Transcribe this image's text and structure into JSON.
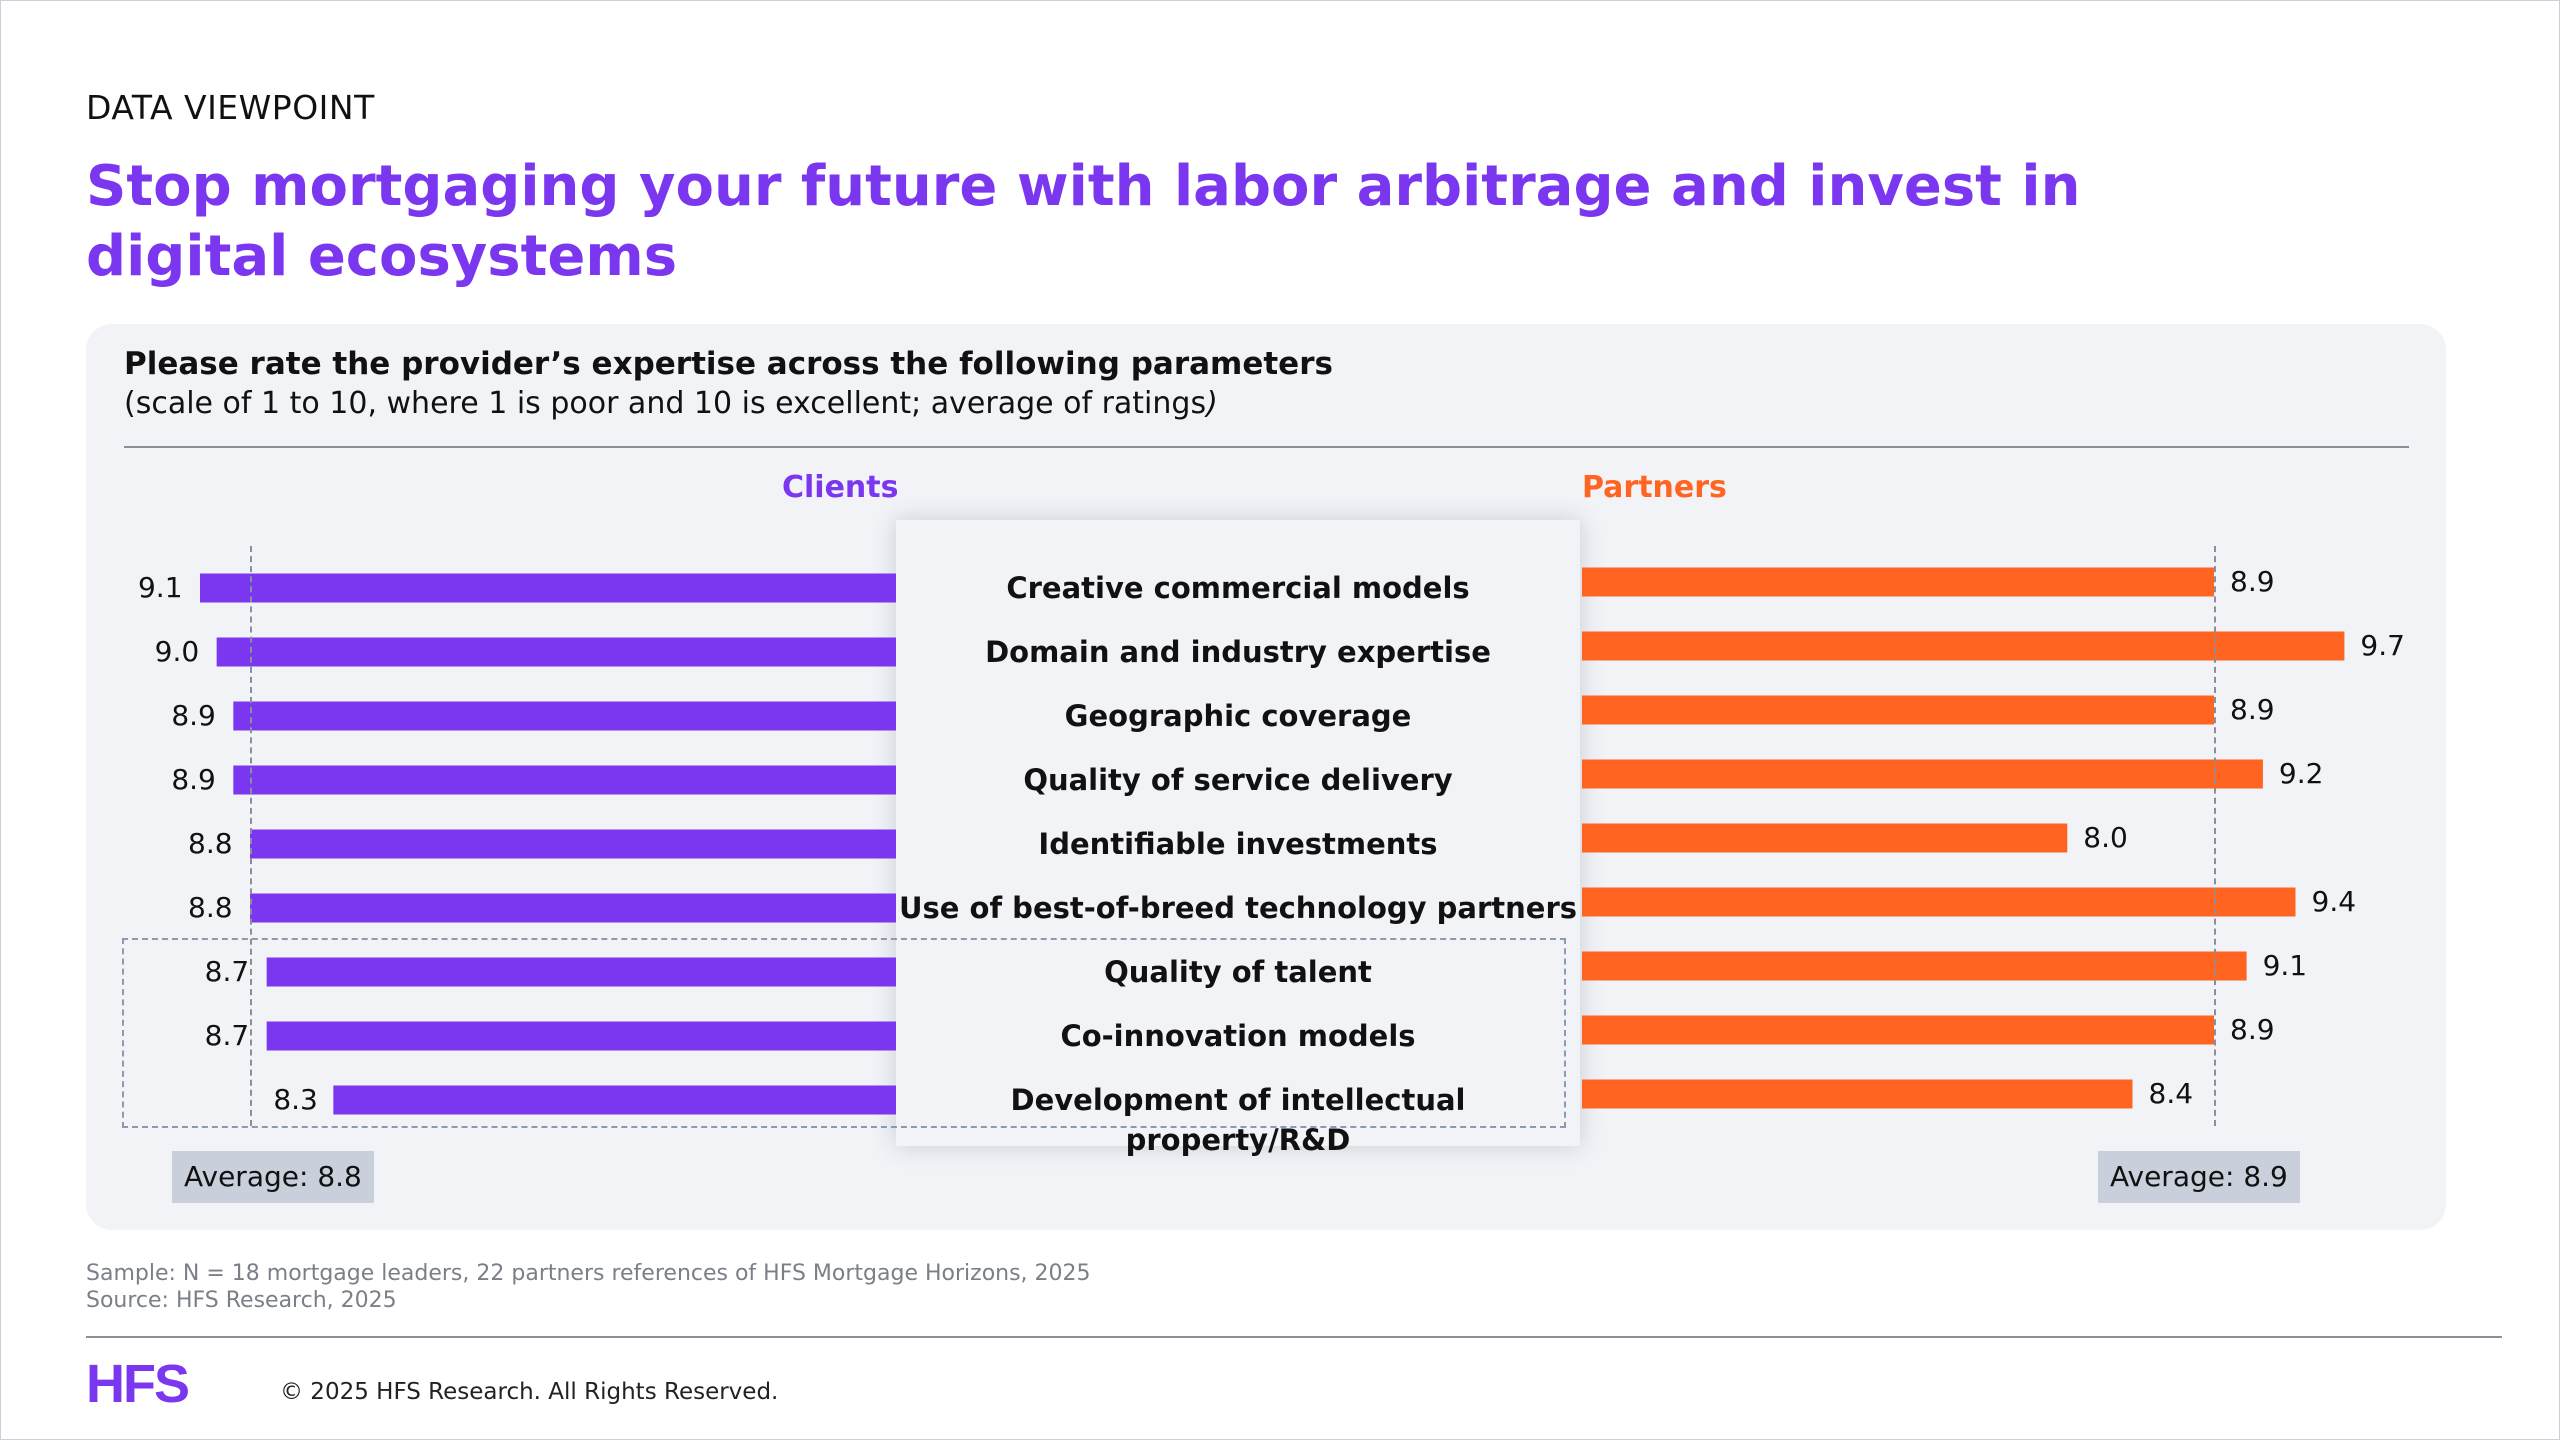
{
  "header": {
    "eyebrow": "DATA VIEWPOINT",
    "title": "Stop mortgaging your future with labor arbitrage and invest in digital ecosystems"
  },
  "panel": {
    "question": "Please rate the provider’s expertise across the following parameters",
    "subtitle_prefix": "(scale of 1 to 10, where 1 is poor and 10 is excellent; average of ratings",
    "subtitle_suffix": ")"
  },
  "chart_data": {
    "type": "bar",
    "orientation": "horizontal-butterfly",
    "categories": [
      "Creative commercial models",
      "Domain and industry expertise",
      "Geographic coverage",
      "Quality of service delivery",
      "Identifiable investments",
      "Use of best-of-breed technology partners",
      "Quality of talent",
      "Co-innovation models",
      "Development of intellectual property/R&D"
    ],
    "series": [
      {
        "name": "Clients",
        "color": "#7b36f0",
        "values": [
          9.1,
          9.0,
          8.9,
          8.9,
          8.8,
          8.8,
          8.7,
          8.7,
          8.3
        ],
        "labels": [
          "9.1",
          "9.0",
          "8.9",
          "8.9",
          "8.8",
          "8.8",
          "8.7",
          "8.7",
          "8.3"
        ],
        "average": 8.8,
        "average_label": "Average: 8.8"
      },
      {
        "name": "Partners",
        "color": "#ff6421",
        "values": [
          8.9,
          9.7,
          8.9,
          9.2,
          8.0,
          9.4,
          9.1,
          8.9,
          8.4
        ],
        "labels": [
          "8.9",
          "9.7",
          "8.9",
          "9.2",
          "8.0",
          "9.4",
          "9.1",
          "8.9",
          "8.4"
        ],
        "average": 8.9,
        "average_label": "Average: 8.9"
      }
    ],
    "highlighted_categories": [
      "Quality of talent",
      "Co-innovation models",
      "Development of intellectual property/R&D"
    ],
    "xlim": [
      0,
      10
    ]
  },
  "footer": {
    "sample": "Sample: N = 18 mortgage leaders, 22 partners references of HFS Mortgage Horizons, 2025",
    "source": "Source: HFS Research, 2025",
    "logo_text": "HFS",
    "copyright": "© 2025 HFS Research. All Rights Reserved."
  }
}
